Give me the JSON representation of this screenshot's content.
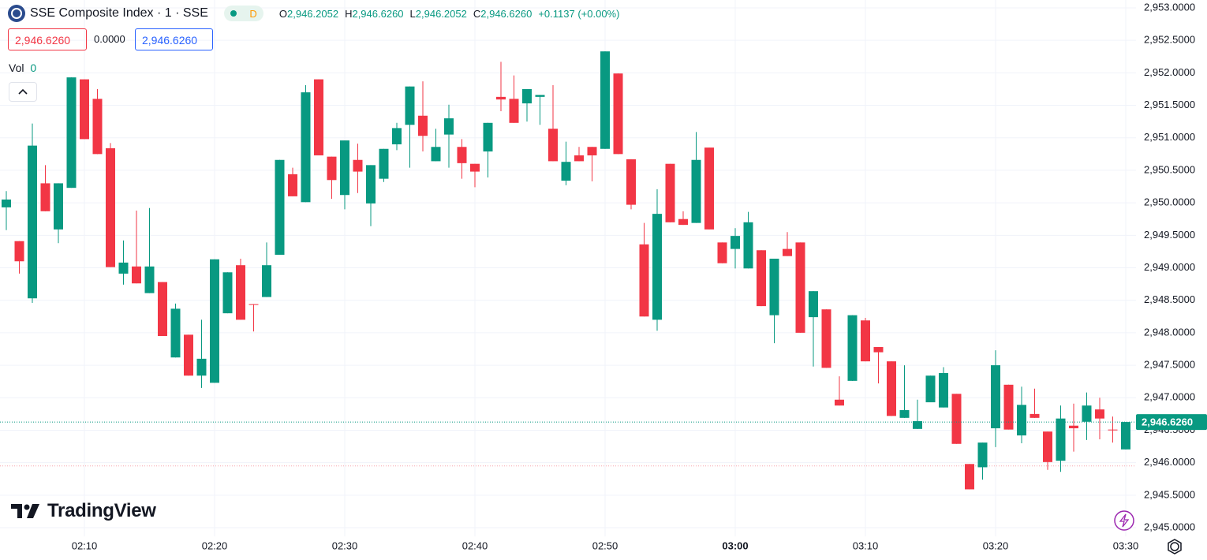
{
  "header": {
    "title": "SSE Composite Index · 1 · SSE",
    "interval_badge": "D",
    "ohlc": [
      {
        "label": "O",
        "value": "2,946.2052"
      },
      {
        "label": "H",
        "value": "2,946.6260"
      },
      {
        "label": "L",
        "value": "2,946.2052"
      },
      {
        "label": "C",
        "value": "2,946.6260"
      }
    ],
    "change": "+0.1137 (+0.00%)",
    "sell_price": "2,946.6260",
    "spread": "0.0000",
    "buy_price": "2,946.6260",
    "volume": {
      "label": "Vol",
      "value": 0
    }
  },
  "brand": "TradingView",
  "chart_data": {
    "type": "candlestick",
    "up_color": "#089981",
    "down_color": "#f23645",
    "grid": true,
    "categories": [
      null,
      null,
      null,
      null,
      null,
      null,
      "02:10",
      null,
      null,
      null,
      null,
      null,
      null,
      null,
      null,
      null,
      "02:20",
      null,
      null,
      null,
      null,
      null,
      null,
      null,
      null,
      null,
      "02:30",
      null,
      null,
      null,
      null,
      null,
      null,
      null,
      null,
      null,
      "02:40",
      null,
      null,
      null,
      null,
      null,
      null,
      null,
      null,
      null,
      "02:50",
      null,
      null,
      null,
      null,
      null,
      null,
      null,
      null,
      null,
      "03:00",
      null,
      null,
      null,
      null,
      null,
      null,
      null,
      null,
      null,
      "03:10",
      null,
      null,
      null,
      null,
      null,
      null,
      null,
      null,
      null,
      "03:20",
      null,
      null,
      null,
      null,
      null,
      null,
      null,
      null,
      null,
      "03:30"
    ],
    "ohlc": {
      "open": [
        2949.93,
        2949.41,
        2948.53,
        2950.3,
        2949.59,
        2950.23,
        2951.9,
        2951.6,
        2950.84,
        2948.91,
        2949.02,
        2948.61,
        2948.78,
        2947.62,
        2947.97,
        2947.34,
        2947.23,
        2948.3,
        2949.04,
        2948.44,
        2948.55,
        2949.2,
        2950.44,
        2950.01,
        2951.9,
        2950.71,
        2950.12,
        2950.66,
        2949.99,
        2950.37,
        2950.9,
        2951.2,
        2951.34,
        2950.64,
        2951.05,
        2950.86,
        2950.6,
        2950.79,
        2951.63,
        2951.6,
        2951.53,
        2951.63,
        2951.14,
        2950.34,
        2950.73,
        2950.86,
        2950.83,
        2951.99,
        2950.67,
        2949.36,
        2948.2,
        2950.6,
        2949.75,
        2949.69,
        2950.85,
        2949.39,
        2949.29,
        2948.99,
        2949.27,
        2948.27,
        2949.29,
        2949.39,
        2948.24,
        2948.36,
        2946.97,
        2947.26,
        2948.19,
        2947.78,
        2947.56,
        2946.69,
        2946.52,
        2946.93,
        2946.85,
        2947.06,
        2945.98,
        2945.93,
        2946.53,
        2947.2,
        2946.42,
        2946.75,
        2946.48,
        2946.03,
        2946.57,
        2946.63,
        2946.82,
        2946.51,
        2946.2052
      ],
      "high": [
        2950.18,
        2949.41,
        2951.22,
        2950.58,
        2950.3,
        2951.93,
        2951.9,
        2951.75,
        2950.92,
        2949.42,
        2949.88,
        2949.92,
        2948.78,
        2948.45,
        2947.97,
        2948.2,
        2949.13,
        2948.93,
        2949.14,
        2948.44,
        2949.39,
        2950.66,
        2950.54,
        2951.81,
        2951.9,
        2950.71,
        2950.96,
        2950.91,
        2950.58,
        2950.83,
        2951.23,
        2951.79,
        2951.87,
        2951.14,
        2951.51,
        2950.98,
        2950.6,
        2951.23,
        2952.17,
        2951.96,
        2951.75,
        2951.66,
        2951.81,
        2950.94,
        2950.86,
        2950.86,
        2952.33,
        2951.99,
        2950.67,
        2949.69,
        2950.21,
        2950.6,
        2949.87,
        2951.09,
        2950.85,
        2949.39,
        2949.61,
        2949.86,
        2949.27,
        2949.14,
        2949.55,
        2949.39,
        2948.64,
        2948.36,
        2947.33,
        2948.27,
        2948.23,
        2947.78,
        2947.56,
        2947.5,
        2946.97,
        2947.34,
        2947.47,
        2947.06,
        2945.98,
        2946.31,
        2947.73,
        2947.2,
        2947.17,
        2947.14,
        2946.48,
        2946.88,
        2946.91,
        2947.08,
        2947.0,
        2946.71,
        2946.626
      ],
      "low": [
        2949.58,
        2948.91,
        2948.46,
        2949.87,
        2949.38,
        2950.23,
        2950.98,
        2950.75,
        2949.01,
        2948.74,
        2948.76,
        2948.61,
        2947.95,
        2947.62,
        2947.34,
        2947.15,
        2947.23,
        2948.3,
        2948.2,
        2948.02,
        2948.55,
        2949.2,
        2950.1,
        2950.01,
        2950.73,
        2950.06,
        2949.9,
        2950.15,
        2949.64,
        2950.32,
        2950.81,
        2950.54,
        2950.79,
        2950.64,
        2950.54,
        2950.37,
        2950.24,
        2950.39,
        2951.41,
        2951.23,
        2951.25,
        2951.2,
        2950.64,
        2950.27,
        2950.64,
        2950.33,
        2950.83,
        2950.75,
        2949.9,
        2948.25,
        2948.03,
        2949.7,
        2949.66,
        2949.69,
        2949.59,
        2949.07,
        2948.99,
        2948.99,
        2948.41,
        2947.84,
        2949.18,
        2948.0,
        2947.48,
        2947.46,
        2946.88,
        2947.26,
        2947.56,
        2947.22,
        2946.72,
        2946.69,
        2946.52,
        2946.93,
        2946.85,
        2946.29,
        2945.59,
        2945.74,
        2946.24,
        2946.51,
        2946.3,
        2946.69,
        2945.89,
        2945.86,
        2946.17,
        2946.35,
        2946.36,
        2946.31,
        2946.2052
      ],
      "close": [
        2950.05,
        2949.1,
        2950.88,
        2949.87,
        2950.3,
        2951.93,
        2950.98,
        2950.75,
        2949.01,
        2949.08,
        2948.76,
        2949.02,
        2947.95,
        2948.37,
        2947.34,
        2947.6,
        2949.13,
        2948.93,
        2948.2,
        2948.43,
        2949.04,
        2950.66,
        2950.1,
        2951.7,
        2950.73,
        2950.35,
        2950.96,
        2950.48,
        2950.58,
        2950.83,
        2951.15,
        2951.79,
        2951.03,
        2950.86,
        2951.3,
        2950.61,
        2950.48,
        2951.23,
        2951.59,
        2951.23,
        2951.75,
        2951.66,
        2950.64,
        2950.63,
        2950.64,
        2950.73,
        2952.33,
        2950.75,
        2949.97,
        2948.25,
        2949.83,
        2949.7,
        2949.66,
        2950.66,
        2949.59,
        2949.07,
        2949.49,
        2949.7,
        2948.41,
        2949.14,
        2949.18,
        2948.0,
        2948.64,
        2947.46,
        2946.88,
        2948.27,
        2947.56,
        2947.7,
        2946.72,
        2946.81,
        2946.64,
        2947.34,
        2947.38,
        2946.29,
        2945.59,
        2946.31,
        2947.5,
        2946.51,
        2946.89,
        2946.69,
        2946.01,
        2946.68,
        2946.53,
        2946.88,
        2946.68,
        2946.5,
        2946.626
      ]
    },
    "ylim": [
      2944.867,
      2953.121
    ],
    "yticks": [
      {
        "value": 2945.0,
        "label": "2,945.0000"
      },
      {
        "value": 2945.5,
        "label": "2,945.5000"
      },
      {
        "value": 2946.0,
        "label": "2,946.0000"
      },
      {
        "value": 2946.5,
        "label": "2,946.5000"
      },
      {
        "value": 2947.0,
        "label": "2,947.0000"
      },
      {
        "value": 2947.5,
        "label": "2,947.5000"
      },
      {
        "value": 2948.0,
        "label": "2,948.0000"
      },
      {
        "value": 2948.5,
        "label": "2,948.5000"
      },
      {
        "value": 2949.0,
        "label": "2,949.0000"
      },
      {
        "value": 2949.5,
        "label": "2,949.5000"
      },
      {
        "value": 2950.0,
        "label": "2,950.0000"
      },
      {
        "value": 2950.5,
        "label": "2,950.5000"
      },
      {
        "value": 2951.0,
        "label": "2,951.0000"
      },
      {
        "value": 2951.5,
        "label": "2,951.5000"
      },
      {
        "value": 2952.0,
        "label": "2,952.0000"
      },
      {
        "value": 2952.5,
        "label": "2,952.5000"
      },
      {
        "value": 2953.0,
        "label": "2,953.0000"
      }
    ],
    "last_price": {
      "value": 2946.626,
      "label": "2,946.6260"
    },
    "reference_line": 2945.95
  }
}
